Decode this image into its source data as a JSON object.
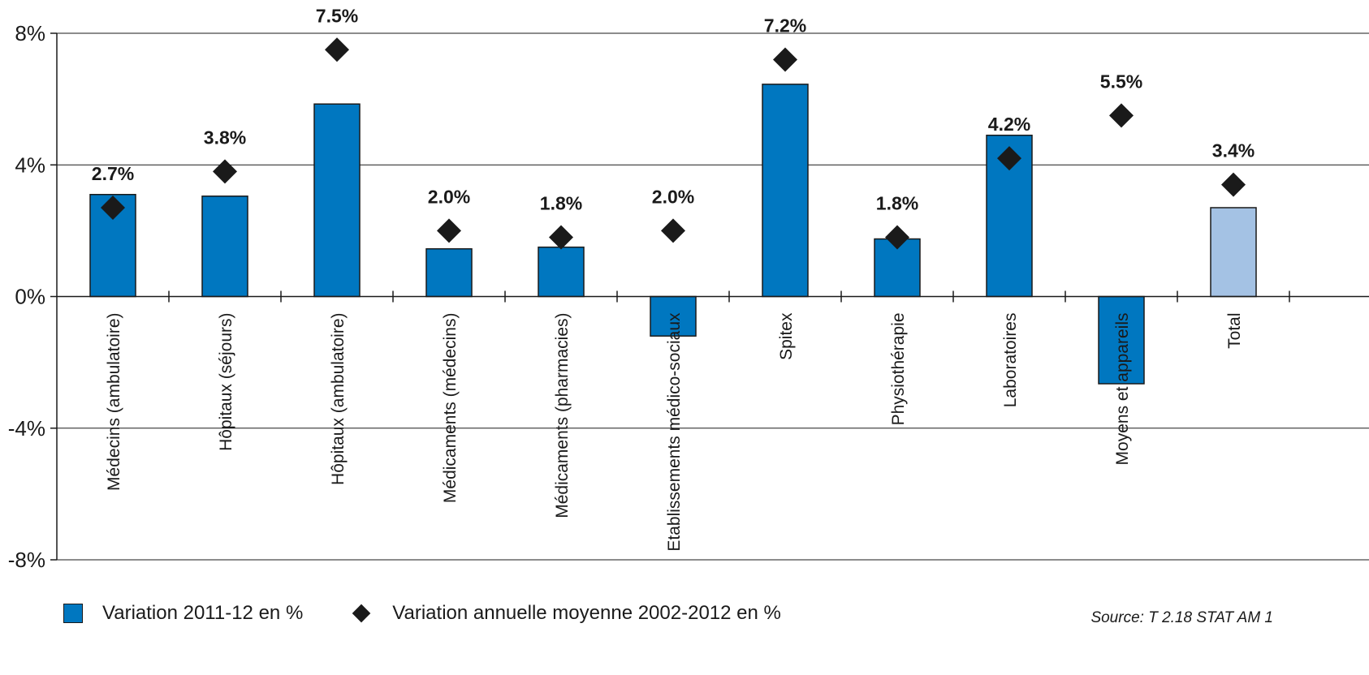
{
  "chart_data": {
    "type": "bar",
    "categories": [
      "Médecins (ambulatoire)",
      "Hôpitaux (séjours)",
      "Hôpitaux (ambulatoire)",
      "Médicaments (médecins)",
      "Médicaments (pharmacies)",
      "Etablissements médico-sociaux",
      "Spitex",
      "Physiothérapie",
      "Laboratoires",
      "Moyens et appareils",
      "Total"
    ],
    "series": [
      {
        "name": "Variation 2011-12 en %",
        "values": [
          3.1,
          3.05,
          5.85,
          1.45,
          1.5,
          -1.2,
          6.45,
          1.75,
          4.9,
          -2.65,
          2.7
        ],
        "colors": [
          "#0077c0",
          "#0077c0",
          "#0077c0",
          "#0077c0",
          "#0077c0",
          "#0077c0",
          "#0077c0",
          "#0077c0",
          "#0077c0",
          "#0077c0",
          "#a4c2e4"
        ]
      },
      {
        "name": "Variation annuelle moyenne 2002-2012 en %",
        "values": [
          2.7,
          3.8,
          7.5,
          2.0,
          1.8,
          2.0,
          7.2,
          1.8,
          4.2,
          5.5,
          3.4
        ],
        "labels": [
          "2.7%",
          "3.8%",
          "7.5%",
          "2.0%",
          "1.8%",
          "2.0%",
          "7.2%",
          "1.8%",
          "4.2%",
          "5.5%",
          "3.4%"
        ],
        "color": "#1a1a1a"
      }
    ],
    "ylim": [
      -8,
      8
    ],
    "yticks": [
      8,
      4,
      0,
      -4,
      -8
    ],
    "ytick_labels": [
      "8%",
      "4%",
      "0%",
      "-4%",
      "-8%"
    ],
    "grid": true,
    "legend_placement": "bottom-left"
  },
  "legend": {
    "bar_label": "Variation 2011-12 en %",
    "diamond_label": "Variation annuelle moyenne 2002-2012 en %"
  },
  "source": "Source: T 2.18  STAT AM 1"
}
